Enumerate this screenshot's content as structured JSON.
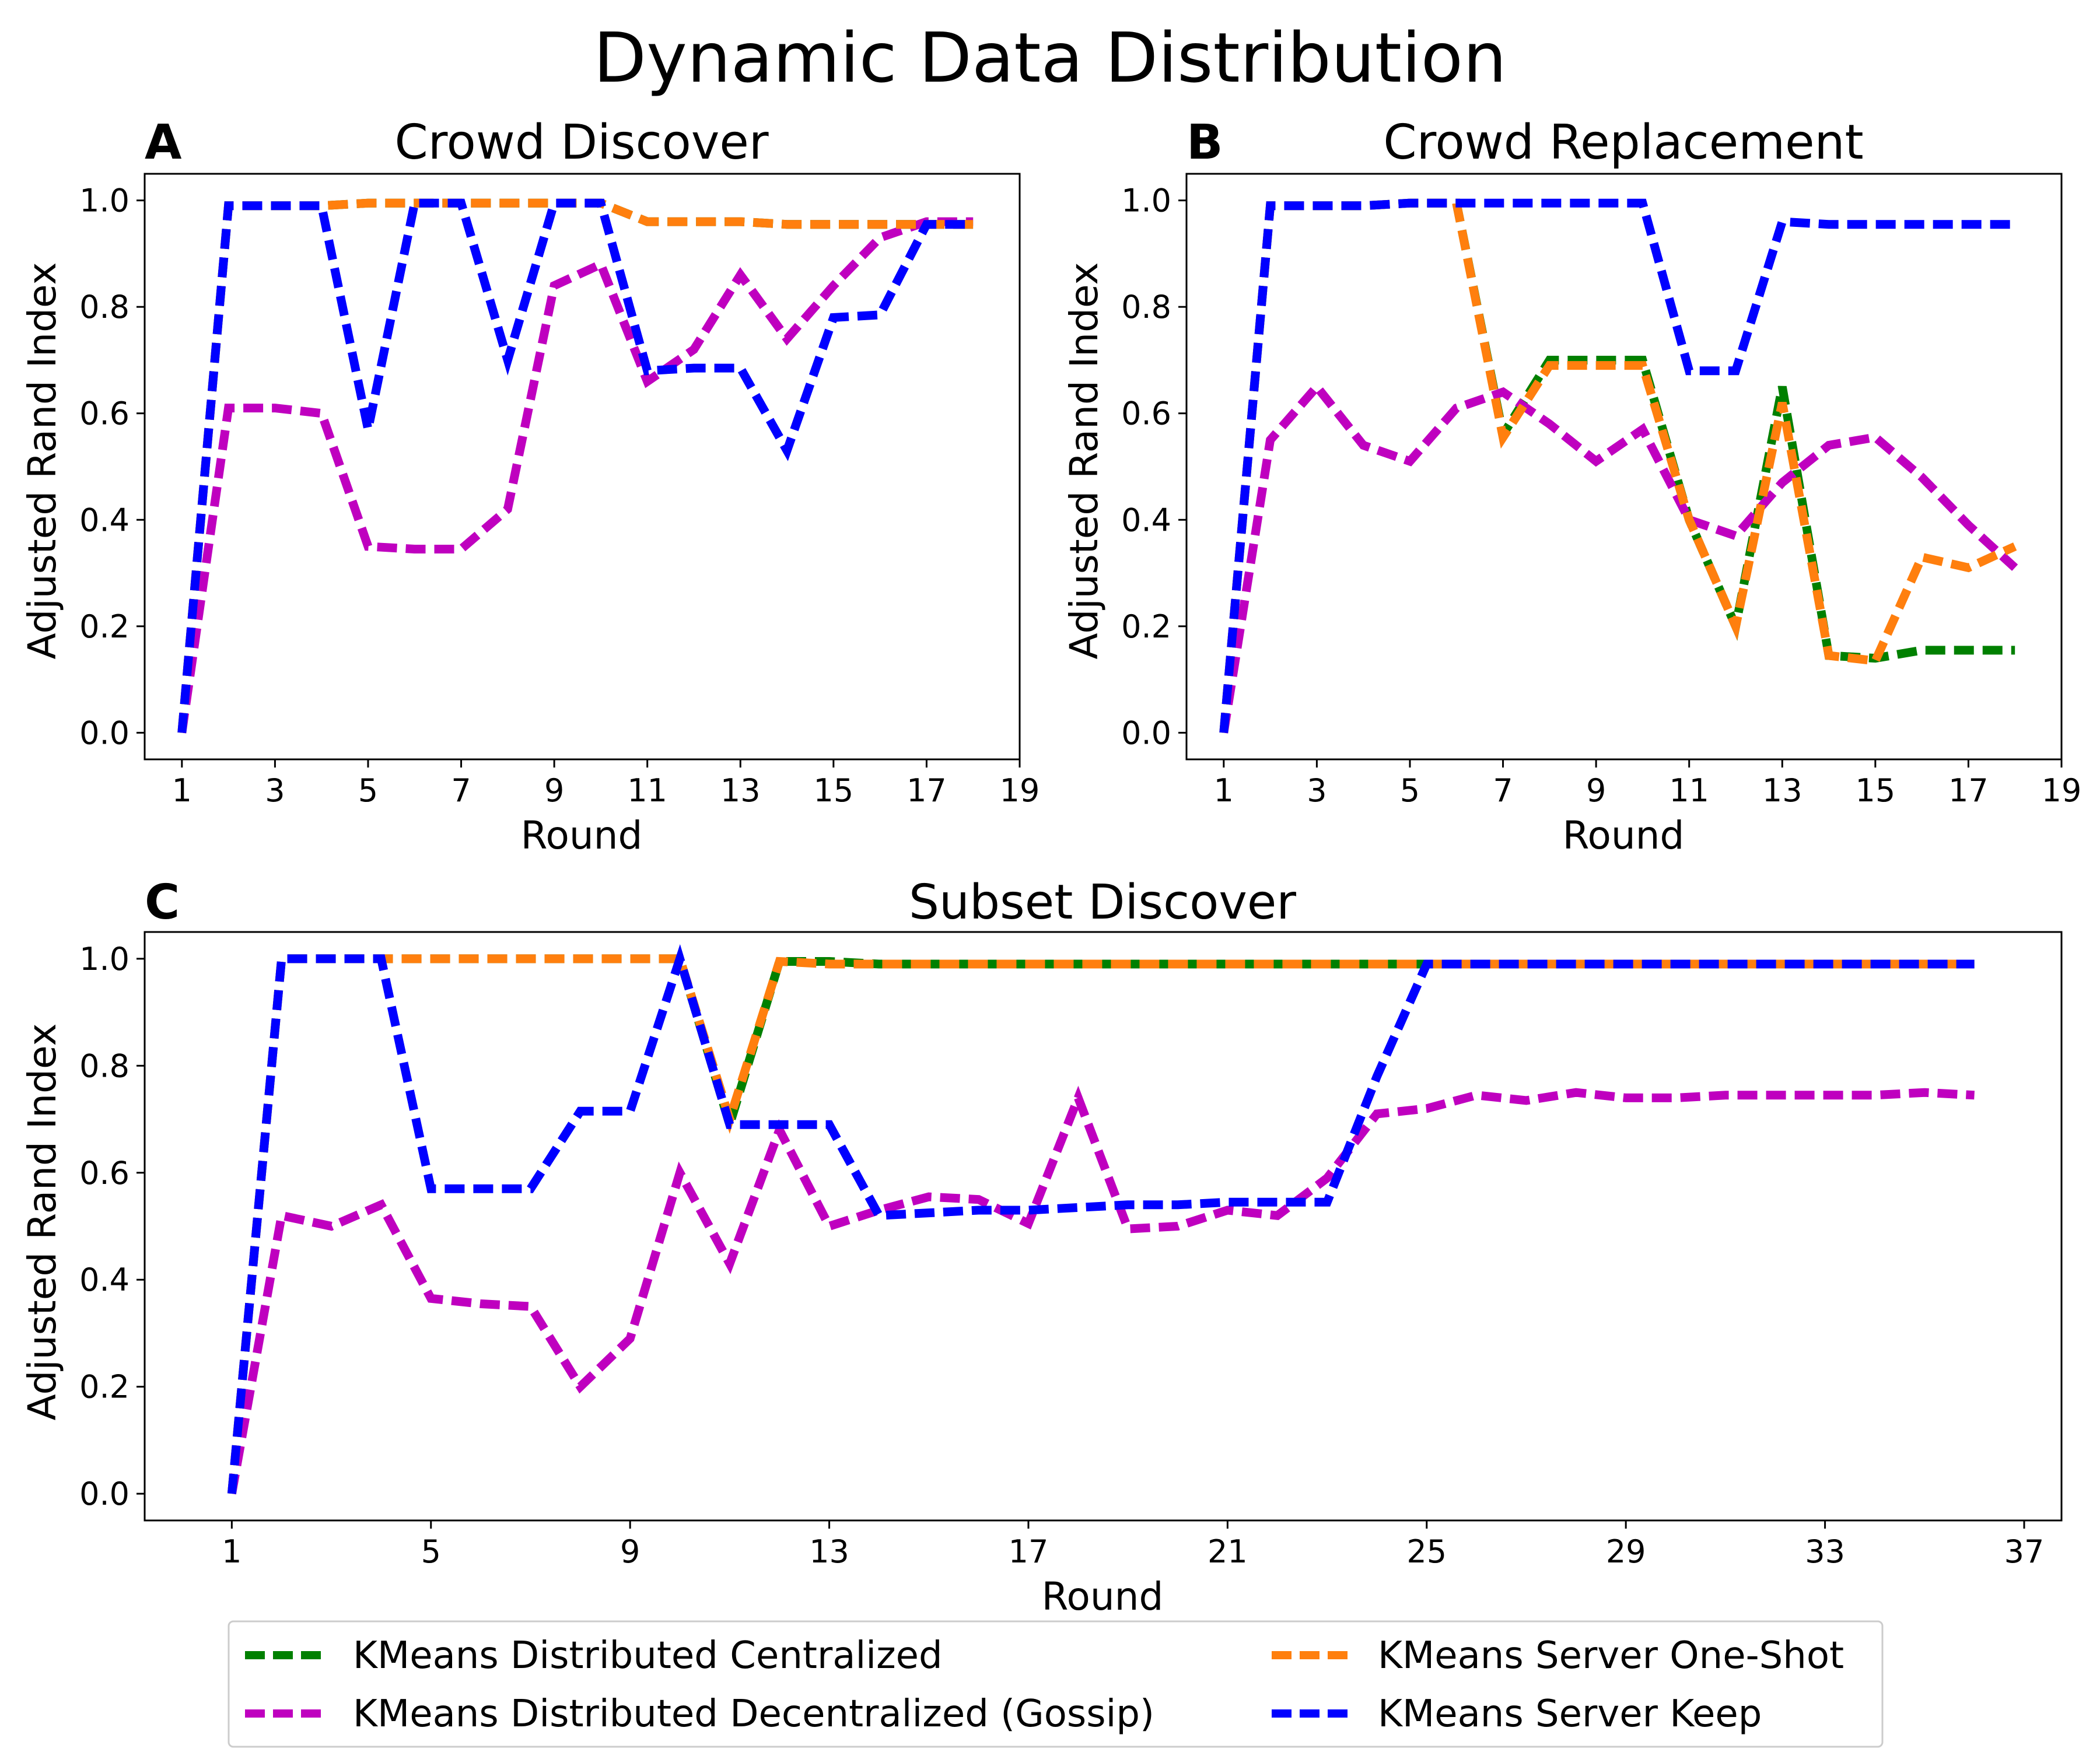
{
  "figure": {
    "title": "Dynamic Data Distribution"
  },
  "chart_data": [
    {
      "type": "line",
      "panel_letter": "A",
      "title": "Crowd Discover",
      "xlabel": "Round",
      "ylabel": "Adjusted Rand Index",
      "xlim": [
        0.2,
        19
      ],
      "ylim": [
        -0.05,
        1.05
      ],
      "xticks": [
        "1",
        "3",
        "5",
        "7",
        "9",
        "11",
        "13",
        "15",
        "17",
        "19"
      ],
      "yticks": [
        "0.0",
        "0.2",
        "0.4",
        "0.6",
        "0.8",
        "1.0"
      ],
      "x": [
        1,
        2,
        3,
        4,
        5,
        6,
        7,
        8,
        9,
        10,
        11,
        12,
        13,
        14,
        15,
        16,
        17,
        18
      ],
      "series": [
        {
          "name": "KMeans Distributed Centralized",
          "color": "#008000",
          "values": [
            0.0,
            0.99,
            0.99,
            0.99,
            0.995,
            0.995,
            0.995,
            0.995,
            0.995,
            0.995,
            0.96,
            0.96,
            0.96,
            0.955,
            0.955,
            0.955,
            0.955,
            0.955
          ]
        },
        {
          "name": "KMeans Distributed Decentralized (Gossip)",
          "color": "#bf00bf",
          "values": [
            0.0,
            0.61,
            0.61,
            0.6,
            0.35,
            0.345,
            0.345,
            0.42,
            0.84,
            0.88,
            0.66,
            0.72,
            0.86,
            0.74,
            0.84,
            0.93,
            0.96,
            0.96
          ]
        },
        {
          "name": "KMeans Server One-Shot",
          "color": "#ff7f0e",
          "values": [
            0.0,
            0.99,
            0.99,
            0.99,
            0.995,
            0.995,
            0.995,
            0.995,
            0.995,
            0.995,
            0.96,
            0.96,
            0.96,
            0.955,
            0.955,
            0.955,
            0.955,
            0.955
          ]
        },
        {
          "name": "KMeans Server Keep",
          "color": "#0000ff",
          "values": [
            0.0,
            0.99,
            0.99,
            0.99,
            0.57,
            0.995,
            0.995,
            0.7,
            0.995,
            0.995,
            0.68,
            0.685,
            0.685,
            0.53,
            0.78,
            0.785,
            0.955,
            0.955
          ]
        }
      ]
    },
    {
      "type": "line",
      "panel_letter": "B",
      "title": "Crowd Replacement",
      "xlabel": "Round",
      "ylabel": "Adjusted Rand Index",
      "xlim": [
        0.2,
        19
      ],
      "ylim": [
        -0.05,
        1.05
      ],
      "xticks": [
        "1",
        "3",
        "5",
        "7",
        "9",
        "11",
        "13",
        "15",
        "17",
        "19"
      ],
      "yticks": [
        "0.0",
        "0.2",
        "0.4",
        "0.6",
        "0.8",
        "1.0"
      ],
      "x": [
        1,
        2,
        3,
        4,
        5,
        6,
        7,
        8,
        9,
        10,
        11,
        12,
        13,
        14,
        15,
        16,
        17,
        18
      ],
      "series": [
        {
          "name": "KMeans Distributed Centralized",
          "color": "#008000",
          "values": [
            0.0,
            0.99,
            0.99,
            0.99,
            0.995,
            0.995,
            0.56,
            0.7,
            0.7,
            0.7,
            0.4,
            0.2,
            0.65,
            0.145,
            0.14,
            0.155,
            0.155,
            0.155
          ]
        },
        {
          "name": "KMeans Distributed Decentralized (Gossip)",
          "color": "#bf00bf",
          "values": [
            0.0,
            0.55,
            0.65,
            0.54,
            0.51,
            0.61,
            0.64,
            0.58,
            0.51,
            0.57,
            0.4,
            0.37,
            0.47,
            0.54,
            0.555,
            0.48,
            0.39,
            0.31
          ]
        },
        {
          "name": "KMeans Server One-Shot",
          "color": "#ff7f0e",
          "values": [
            0.0,
            0.99,
            0.99,
            0.99,
            0.995,
            0.995,
            0.555,
            0.69,
            0.69,
            0.69,
            0.4,
            0.2,
            0.62,
            0.145,
            0.135,
            0.33,
            0.31,
            0.35
          ]
        },
        {
          "name": "KMeans Server Keep",
          "color": "#0000ff",
          "values": [
            0.0,
            0.99,
            0.99,
            0.99,
            0.995,
            0.995,
            0.995,
            0.995,
            0.995,
            0.995,
            0.68,
            0.68,
            0.96,
            0.955,
            0.955,
            0.955,
            0.955,
            0.955
          ]
        }
      ]
    },
    {
      "type": "line",
      "panel_letter": "C",
      "title": "Subset Discover",
      "xlabel": "Round",
      "ylabel": "Adjusted Rand Index",
      "xlim": [
        -0.75,
        37.75
      ],
      "ylim": [
        -0.05,
        1.05
      ],
      "xticks": [
        "1",
        "5",
        "9",
        "13",
        "17",
        "21",
        "25",
        "29",
        "33",
        "37"
      ],
      "yticks": [
        "0.0",
        "0.2",
        "0.4",
        "0.6",
        "0.8",
        "1.0"
      ],
      "x": [
        1,
        2,
        3,
        4,
        5,
        6,
        7,
        8,
        9,
        10,
        11,
        12,
        13,
        14,
        15,
        16,
        17,
        18,
        19,
        20,
        21,
        22,
        23,
        24,
        25,
        26,
        27,
        28,
        29,
        30,
        31,
        32,
        33,
        34,
        35,
        36
      ],
      "series": [
        {
          "name": "KMeans Distributed Centralized",
          "color": "#008000",
          "values": [
            0.0,
            1.0,
            1.0,
            1.0,
            1.0,
            1.0,
            1.0,
            1.0,
            1.0,
            1.0,
            0.69,
            0.995,
            0.995,
            0.99,
            0.99,
            0.99,
            0.99,
            0.99,
            0.99,
            0.99,
            0.99,
            0.99,
            0.99,
            0.99,
            0.99,
            0.99,
            0.99,
            0.99,
            0.99,
            0.99,
            0.99,
            0.99,
            0.99,
            0.99,
            0.99,
            0.99
          ]
        },
        {
          "name": "KMeans Distributed Decentralized (Gossip)",
          "color": "#bf00bf",
          "values": [
            0.0,
            0.52,
            0.5,
            0.54,
            0.365,
            0.355,
            0.35,
            0.2,
            0.29,
            0.6,
            0.43,
            0.68,
            0.5,
            0.53,
            0.555,
            0.55,
            0.505,
            0.74,
            0.495,
            0.5,
            0.53,
            0.52,
            0.59,
            0.71,
            0.72,
            0.745,
            0.735,
            0.75,
            0.74,
            0.74,
            0.745,
            0.745,
            0.745,
            0.745,
            0.75,
            0.745
          ]
        },
        {
          "name": "KMeans Server One-Shot",
          "color": "#ff7f0e",
          "values": [
            0.0,
            1.0,
            1.0,
            1.0,
            1.0,
            1.0,
            1.0,
            1.0,
            1.0,
            1.0,
            0.7,
            0.995,
            0.99,
            0.99,
            0.99,
            0.99,
            0.99,
            0.99,
            0.99,
            0.99,
            0.99,
            0.99,
            0.99,
            0.99,
            0.99,
            0.99,
            0.99,
            0.99,
            0.99,
            0.99,
            0.99,
            0.99,
            0.99,
            0.99,
            0.99,
            0.99
          ]
        },
        {
          "name": "KMeans Server Keep",
          "color": "#0000ff",
          "values": [
            0.0,
            1.0,
            1.0,
            1.0,
            0.57,
            0.57,
            0.57,
            0.715,
            0.715,
            1.0,
            0.69,
            0.69,
            0.69,
            0.52,
            0.525,
            0.53,
            0.53,
            0.535,
            0.54,
            0.54,
            0.545,
            0.545,
            0.545,
            0.78,
            0.99,
            0.99,
            0.99,
            0.99,
            0.99,
            0.99,
            0.99,
            0.99,
            0.99,
            0.99,
            0.99,
            0.99
          ]
        }
      ]
    }
  ],
  "legend": {
    "placement": "bottom",
    "entries": [
      {
        "label": "KMeans Distributed Centralized",
        "color": "#008000"
      },
      {
        "label": "KMeans Server One-Shot",
        "color": "#ff7f0e"
      },
      {
        "label": "KMeans Distributed Decentralized (Gossip)",
        "color": "#bf00bf"
      },
      {
        "label": "KMeans Server Keep",
        "color": "#0000ff"
      }
    ]
  }
}
